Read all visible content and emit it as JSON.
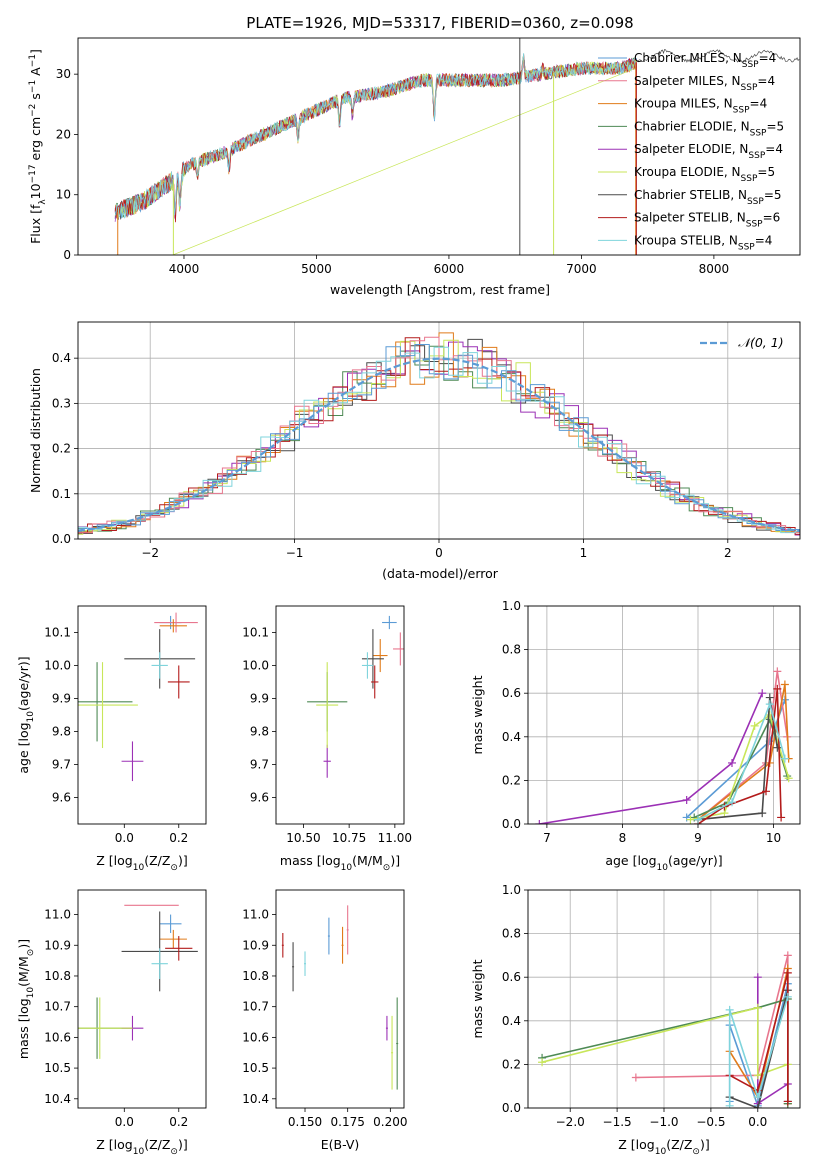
{
  "title": "PLATE=1926, MJD=53317, FIBERID=0360, z=0.098",
  "colors": {
    "c0": "#5b9bd5",
    "c1": "#e8768e",
    "c2": "#e07b1a",
    "c3": "#4e8a55",
    "c4": "#9b30b5",
    "c5": "#c8e65a",
    "c6": "#4a4a4a",
    "c7": "#b31b1b",
    "c8": "#7fd4dc"
  },
  "chart_data": [
    {
      "id": "spectrum",
      "type": "line",
      "xlabel": "wavelength [Angstrom, rest frame]",
      "ylabel": "Flux [fλ10⁻¹⁷ erg cm⁻² s⁻¹ A⁻¹]",
      "xlim": [
        3200,
        8650
      ],
      "ylim": [
        0,
        36
      ],
      "xticks": [
        4000,
        5000,
        6000,
        7000,
        8000
      ],
      "yticks": [
        0,
        10,
        20,
        30
      ],
      "legend": "top-right",
      "continuum_x": [
        3480,
        3700,
        3950,
        4050,
        4300,
        4600,
        4900,
        5200,
        5500,
        5800,
        6100,
        6400,
        6700,
        7000,
        7300,
        7420
      ],
      "continuum_y": [
        7,
        9,
        13,
        15,
        17,
        20,
        23,
        26,
        27,
        29,
        29,
        29,
        30,
        31,
        31,
        32
      ],
      "series": [
        {
          "name": "Chabrier MILES, N",
          "sub": "SSP",
          "suffix": "=4",
          "color": "c0"
        },
        {
          "name": "Salpeter MILES, N",
          "sub": "SSP",
          "suffix": "=4",
          "color": "c1"
        },
        {
          "name": "Kroupa MILES, N",
          "sub": "SSP",
          "suffix": "=4",
          "color": "c2"
        },
        {
          "name": "Chabrier ELODIE, N",
          "sub": "SSP",
          "suffix": "=5",
          "color": "c3"
        },
        {
          "name": "Salpeter ELODIE, N",
          "sub": "SSP",
          "suffix": "=4",
          "color": "c4"
        },
        {
          "name": "Kroupa ELODIE, N",
          "sub": "SSP",
          "suffix": "=5",
          "color": "c5"
        },
        {
          "name": "Chabrier STELIB, N",
          "sub": "SSP",
          "suffix": "=5",
          "color": "c6"
        },
        {
          "name": "Salpeter STELIB, N",
          "sub": "SSP",
          "suffix": "=6",
          "color": "c7"
        },
        {
          "name": "Kroupa STELIB, N",
          "sub": "SSP",
          "suffix": "=4",
          "color": "c8"
        }
      ]
    },
    {
      "id": "residuals",
      "type": "step-histogram",
      "xlabel": "(data-model)/error",
      "ylabel": "Normed distribution",
      "xlim": [
        -2.5,
        2.5
      ],
      "ylim": [
        0,
        0.48
      ],
      "xticks": [
        -2,
        -1,
        0,
        1,
        2
      ],
      "yticks": [
        0.0,
        0.1,
        0.2,
        0.3,
        0.4
      ],
      "grid": true,
      "legend": "top-right",
      "reference_curve": {
        "name": "𝒩(0, 1)",
        "type": "gaussian",
        "mean": 0,
        "sigma": 1,
        "color": "c0"
      }
    },
    {
      "id": "age-vs-Z",
      "type": "errorbar",
      "xlabel": "Z [log10(Z/Z⊙)]",
      "ylabel": "age [log10(age/yr)]",
      "xlim": [
        -0.17,
        0.3
      ],
      "ylim": [
        9.52,
        10.18
      ],
      "xticks": [
        0.0,
        0.2
      ],
      "yticks": [
        9.6,
        9.7,
        9.8,
        9.9,
        10.0,
        10.1
      ],
      "points": [
        {
          "x": 0.17,
          "y": 10.13,
          "xerr": 0.04,
          "yerr": 0.02,
          "color": "c0"
        },
        {
          "x": 0.19,
          "y": 10.13,
          "xerr": 0.08,
          "yerr": 0.03,
          "color": "c1"
        },
        {
          "x": 0.18,
          "y": 10.12,
          "xerr": 0.05,
          "yerr": 0.02,
          "color": "c2"
        },
        {
          "x": -0.1,
          "y": 9.89,
          "xerr": 0.13,
          "yerr": 0.12,
          "color": "c3"
        },
        {
          "x": 0.03,
          "y": 9.71,
          "xerr": 0.04,
          "yerr": 0.06,
          "color": "c4"
        },
        {
          "x": -0.08,
          "y": 9.88,
          "xerr": 0.13,
          "yerr": 0.13,
          "color": "c5"
        },
        {
          "x": 0.13,
          "y": 10.02,
          "xerr": 0.13,
          "yerr": 0.09,
          "color": "c6"
        },
        {
          "x": 0.2,
          "y": 9.95,
          "xerr": 0.04,
          "yerr": 0.05,
          "color": "c7"
        },
        {
          "x": 0.13,
          "y": 10.0,
          "xerr": 0.03,
          "yerr": 0.04,
          "color": "c8"
        }
      ]
    },
    {
      "id": "age-vs-mass",
      "type": "errorbar",
      "xlabel": "mass [log10(M/M⊙)]",
      "ylabel": "",
      "xlim": [
        10.35,
        11.05
      ],
      "ylim": [
        9.52,
        10.18
      ],
      "xticks": [
        10.5,
        10.75,
        11.0
      ],
      "yticks": [
        9.6,
        9.7,
        9.8,
        9.9,
        10.0,
        10.1
      ],
      "points": [
        {
          "x": 10.97,
          "y": 10.13,
          "xerr": 0.04,
          "yerr": 0.02,
          "color": "c0"
        },
        {
          "x": 11.03,
          "y": 10.05,
          "xerr": 0.04,
          "yerr": 0.05,
          "color": "c1"
        },
        {
          "x": 10.92,
          "y": 10.03,
          "xerr": 0.04,
          "yerr": 0.05,
          "color": "c2"
        },
        {
          "x": 10.63,
          "y": 9.89,
          "xerr": 0.11,
          "yerr": 0.09,
          "color": "c3"
        },
        {
          "x": 10.63,
          "y": 9.71,
          "xerr": 0.02,
          "yerr": 0.05,
          "color": "c4"
        },
        {
          "x": 10.63,
          "y": 9.88,
          "xerr": 0.06,
          "yerr": 0.13,
          "color": "c5"
        },
        {
          "x": 10.88,
          "y": 10.02,
          "xerr": 0.06,
          "yerr": 0.09,
          "color": "c6"
        },
        {
          "x": 10.89,
          "y": 9.95,
          "xerr": 0.02,
          "yerr": 0.05,
          "color": "c7"
        },
        {
          "x": 10.85,
          "y": 10.0,
          "xerr": 0.03,
          "yerr": 0.04,
          "color": "c8"
        }
      ]
    },
    {
      "id": "weight-vs-age",
      "type": "line",
      "xlabel": "age [log10(age/yr)]",
      "ylabel": "mass weight",
      "xlim": [
        6.75,
        10.35
      ],
      "ylim": [
        0,
        1.0
      ],
      "xticks": [
        7,
        8,
        9,
        10
      ],
      "yticks": [
        0.0,
        0.2,
        0.4,
        0.6,
        0.8,
        1.0
      ],
      "grid": true,
      "series": [
        {
          "color": "c0",
          "x": [
            8.85,
            9.95,
            10.15
          ],
          "y": [
            0.03,
            0.38,
            0.57
          ]
        },
        {
          "color": "c1",
          "x": [
            9.0,
            9.9,
            10.05,
            10.18
          ],
          "y": [
            0.02,
            0.28,
            0.7,
            0.4
          ]
        },
        {
          "color": "c2",
          "x": [
            9.0,
            9.95,
            10.15,
            10.2
          ],
          "y": [
            0.02,
            0.28,
            0.64,
            0.3
          ]
        },
        {
          "color": "c3",
          "x": [
            8.95,
            9.4,
            9.95,
            10.18
          ],
          "y": [
            0.03,
            0.1,
            0.48,
            0.22
          ]
        },
        {
          "color": "c4",
          "x": [
            6.9,
            8.85,
            9.45,
            9.85
          ],
          "y": [
            0.0,
            0.11,
            0.28,
            0.6
          ]
        },
        {
          "color": "c5",
          "x": [
            8.9,
            9.35,
            9.75,
            9.95,
            10.2
          ],
          "y": [
            0.02,
            0.05,
            0.45,
            0.5,
            0.21
          ]
        },
        {
          "color": "c6",
          "x": [
            9.0,
            9.85,
            9.95,
            10.05
          ],
          "y": [
            0.02,
            0.05,
            0.58,
            0.35
          ]
        },
        {
          "color": "c7",
          "x": [
            9.0,
            9.35,
            9.9,
            10.05,
            10.1
          ],
          "y": [
            0.0,
            0.08,
            0.15,
            0.62,
            0.03
          ]
        },
        {
          "color": "c8",
          "x": [
            9.0,
            9.45,
            9.95,
            10.15
          ],
          "y": [
            0.02,
            0.1,
            0.55,
            0.3
          ]
        }
      ]
    },
    {
      "id": "mass-vs-Z",
      "type": "errorbar",
      "xlabel": "Z [log10(Z/Z⊙)]",
      "ylabel": "mass [log10(M/M⊙)]",
      "xlim": [
        -0.17,
        0.3
      ],
      "ylim": [
        10.37,
        11.08
      ],
      "xticks": [
        0.0,
        0.2
      ],
      "yticks": [
        10.4,
        10.5,
        10.6,
        10.7,
        10.8,
        10.9,
        11.0
      ],
      "points": [
        {
          "x": 0.17,
          "y": 10.97,
          "xerr": 0.04,
          "yerr": 0.03,
          "color": "c0"
        },
        {
          "x": 0.1,
          "y": 11.03,
          "xerr": 0.1,
          "yerr": 0.0,
          "color": "c1"
        },
        {
          "x": 0.18,
          "y": 10.92,
          "xerr": 0.05,
          "yerr": 0.03,
          "color": "c2"
        },
        {
          "x": -0.1,
          "y": 10.63,
          "xerr": 0.13,
          "yerr": 0.1,
          "color": "c3"
        },
        {
          "x": 0.03,
          "y": 10.63,
          "xerr": 0.04,
          "yerr": 0.04,
          "color": "c4"
        },
        {
          "x": -0.09,
          "y": 10.63,
          "xerr": 0.12,
          "yerr": 0.1,
          "color": "c5"
        },
        {
          "x": 0.13,
          "y": 10.88,
          "xerr": 0.14,
          "yerr": 0.13,
          "color": "c6"
        },
        {
          "x": 0.2,
          "y": 10.89,
          "xerr": 0.05,
          "yerr": 0.04,
          "color": "c7"
        },
        {
          "x": 0.13,
          "y": 10.84,
          "xerr": 0.03,
          "yerr": 0.05,
          "color": "c8"
        }
      ]
    },
    {
      "id": "mass-vs-ebv",
      "type": "errorbar",
      "xlabel": "E(B-V)",
      "ylabel": "",
      "xlim": [
        0.133,
        0.208
      ],
      "ylim": [
        10.37,
        11.08
      ],
      "xticks": [
        0.15,
        0.175,
        0.2
      ],
      "yticks": [
        10.4,
        10.5,
        10.6,
        10.7,
        10.8,
        10.9,
        11.0
      ],
      "points": [
        {
          "x": 0.164,
          "y": 10.93,
          "xerr": 0.0,
          "yerr": 0.06,
          "color": "c0"
        },
        {
          "x": 0.175,
          "y": 10.95,
          "xerr": 0.0,
          "yerr": 0.08,
          "color": "c1"
        },
        {
          "x": 0.172,
          "y": 10.9,
          "xerr": 0.0,
          "yerr": 0.06,
          "color": "c2"
        },
        {
          "x": 0.204,
          "y": 10.58,
          "xerr": 0.0,
          "yerr": 0.15,
          "color": "c3"
        },
        {
          "x": 0.198,
          "y": 10.63,
          "xerr": 0.0,
          "yerr": 0.04,
          "color": "c4"
        },
        {
          "x": 0.201,
          "y": 10.55,
          "xerr": 0.0,
          "yerr": 0.12,
          "color": "c5"
        },
        {
          "x": 0.143,
          "y": 10.83,
          "xerr": 0.0,
          "yerr": 0.08,
          "color": "c6"
        },
        {
          "x": 0.137,
          "y": 10.9,
          "xerr": 0.0,
          "yerr": 0.04,
          "color": "c7"
        },
        {
          "x": 0.15,
          "y": 10.84,
          "xerr": 0.0,
          "yerr": 0.04,
          "color": "c8"
        }
      ]
    },
    {
      "id": "weight-vs-Z",
      "type": "line",
      "xlabel": "Z [log10(Z/Z⊙)]",
      "ylabel": "mass weight",
      "xlim": [
        -2.45,
        0.45
      ],
      "ylim": [
        0,
        1.0
      ],
      "xticks": [
        -2.0,
        -1.5,
        -1.0,
        -0.5,
        0.0
      ],
      "yticks": [
        0.0,
        0.2,
        0.4,
        0.6,
        0.8,
        1.0
      ],
      "grid": true,
      "series": [
        {
          "color": "c0",
          "x": [
            -0.3,
            -0.3,
            0.0,
            0.32
          ],
          "y": [
            0.03,
            0.38,
            0.01,
            0.57
          ]
        },
        {
          "color": "c1",
          "x": [
            -1.3,
            0.0,
            0.32,
            0.32
          ],
          "y": [
            0.14,
            0.15,
            0.7,
            0.02
          ]
        },
        {
          "color": "c2",
          "x": [
            -0.3,
            0.0,
            0.32,
            0.32
          ],
          "y": [
            0.26,
            0.05,
            0.64,
            0.02
          ]
        },
        {
          "color": "c3",
          "x": [
            -2.3,
            0.0,
            0.32,
            0.32
          ],
          "y": [
            0.23,
            0.46,
            0.5,
            0.02
          ]
        },
        {
          "color": "c4",
          "x": [
            0.0,
            0.0,
            0.32
          ],
          "y": [
            0.6,
            0.02,
            0.11
          ]
        },
        {
          "color": "c5",
          "x": [
            -2.3,
            0.0,
            0.0,
            0.32
          ],
          "y": [
            0.21,
            0.46,
            0.15,
            0.2
          ]
        },
        {
          "color": "c6",
          "x": [
            -0.3,
            0.0,
            0.32,
            0.32
          ],
          "y": [
            0.05,
            0.0,
            0.54,
            0.03
          ]
        },
        {
          "color": "c7",
          "x": [
            -0.3,
            0.0,
            0.32,
            0.32
          ],
          "y": [
            0.15,
            0.08,
            0.62,
            0.03
          ]
        },
        {
          "color": "c8",
          "x": [
            -0.3,
            -0.3,
            0.0,
            0.32
          ],
          "y": [
            0.01,
            0.45,
            0.05,
            0.51
          ]
        }
      ]
    }
  ]
}
